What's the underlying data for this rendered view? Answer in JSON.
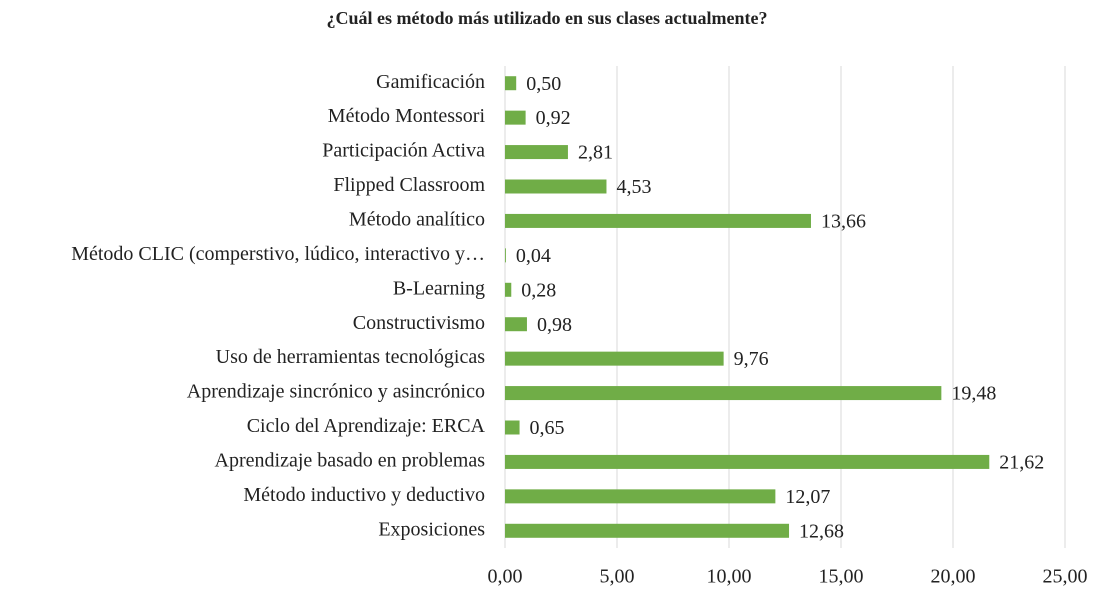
{
  "chart_data": {
    "type": "hbar",
    "title": "¿Cuál es método más utilizado en sus clases actualmente?",
    "categories": [
      "Gamificación",
      "Método Montessori",
      "Participación Activa",
      "Flipped Classroom",
      "Método analítico",
      "Método CLIC (comperstivo, lúdico, interactivo y…",
      "B-Learning",
      "Constructivismo",
      "Uso de herramientas tecnológicas",
      "Aprendizaje sincrónico y asincrónico",
      "Ciclo del Aprendizaje: ERCA",
      "Aprendizaje basado en problemas",
      "Método inductivo y deductivo",
      "Exposiciones"
    ],
    "values": [
      0.5,
      0.92,
      2.81,
      4.53,
      13.66,
      0.04,
      0.28,
      0.98,
      9.76,
      19.48,
      0.65,
      21.62,
      12.07,
      12.68
    ],
    "value_labels": [
      "0,50",
      "0,92",
      "2,81",
      "4,53",
      "13,66",
      "0,04",
      "0,28",
      "0,98",
      "9,76",
      "19,48",
      "0,65",
      "21,62",
      "12,07",
      "12,68"
    ],
    "color": "#70ad47",
    "xlim": [
      0,
      25
    ],
    "xticks": [
      {
        "value": 0,
        "label": "0,00"
      },
      {
        "value": 5,
        "label": "5,00"
      },
      {
        "value": 10,
        "label": "10,00"
      },
      {
        "value": 15,
        "label": "15,00"
      },
      {
        "value": 20,
        "label": "20,00"
      },
      {
        "value": 25,
        "label": "25,00"
      }
    ],
    "grid": true
  }
}
